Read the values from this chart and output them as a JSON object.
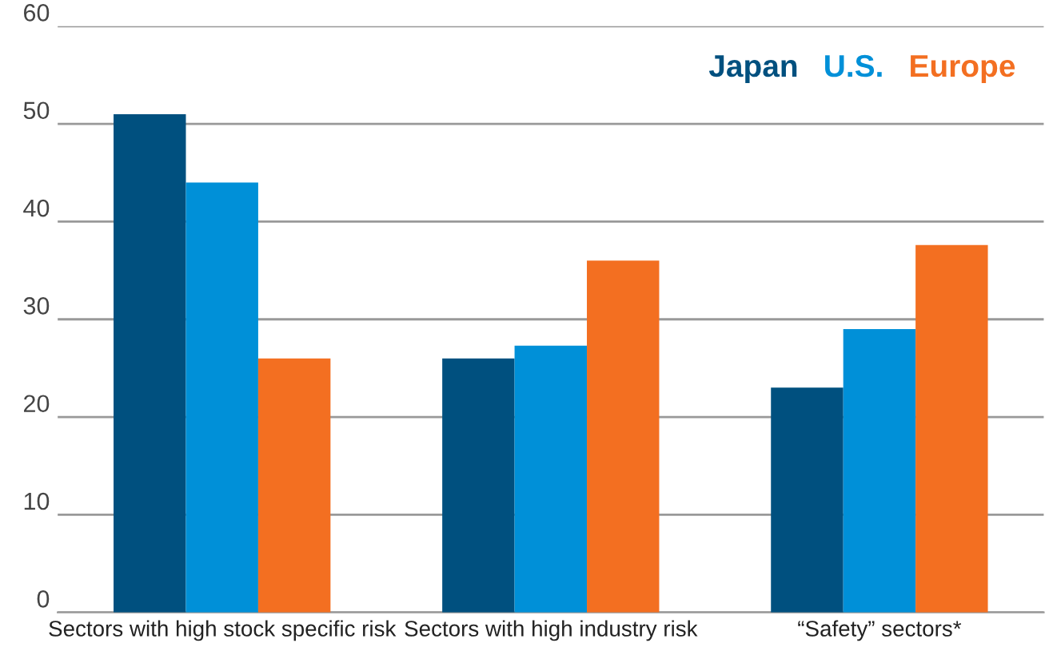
{
  "chart_data": {
    "type": "bar",
    "categories": [
      "Sectors with high stock specific risk",
      "Sectors with high industry risk",
      "“Safety” sectors*"
    ],
    "series": [
      {
        "name": "Japan",
        "color": "#00507f",
        "values": [
          51,
          26,
          23
        ]
      },
      {
        "name": "U.S.",
        "color": "#0090d8",
        "values": [
          44,
          27.3,
          29
        ]
      },
      {
        "name": "Europe",
        "color": "#f36f21",
        "values": [
          26,
          36,
          37.6
        ]
      }
    ],
    "ylim": [
      0,
      60
    ],
    "yticks": [
      0,
      10,
      20,
      30,
      40,
      50,
      60
    ],
    "grid": "y",
    "legend": "top right"
  }
}
